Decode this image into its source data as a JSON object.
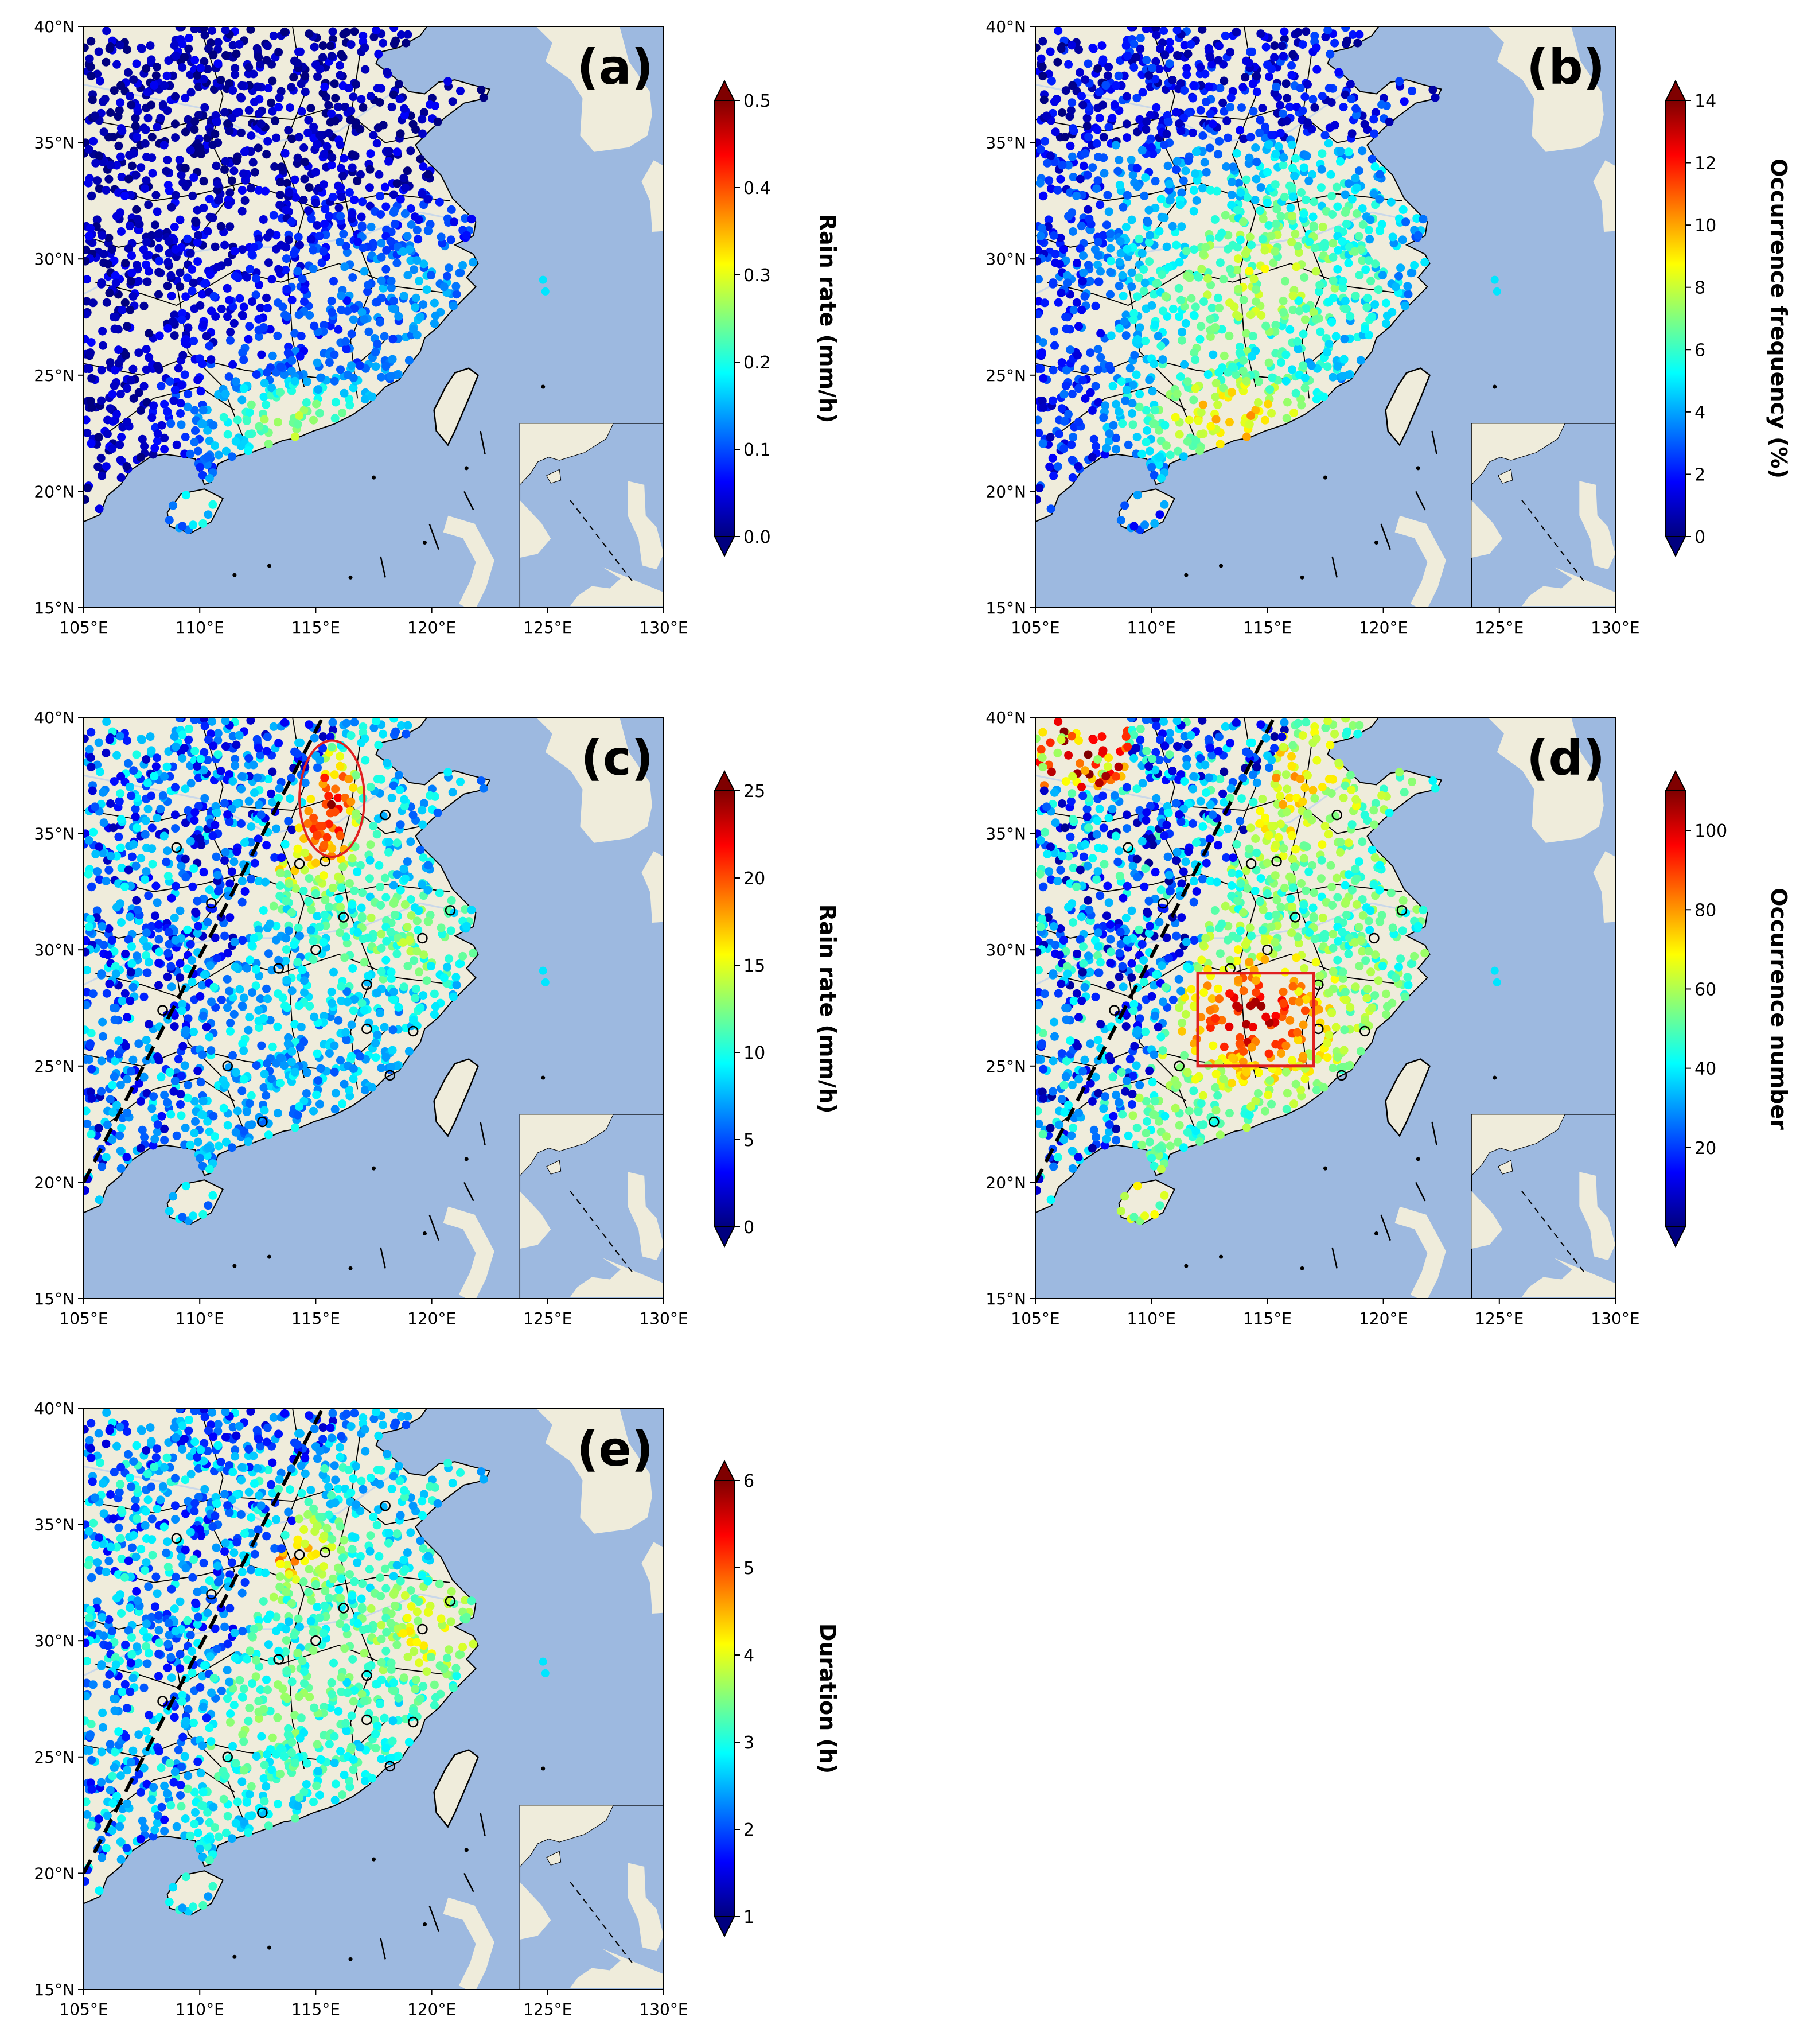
{
  "figure": {
    "colors": {
      "ocean": "#9db9e0",
      "land": "#efecdb",
      "border": "#000000",
      "river": "#c9d8ea",
      "frame": "#000000",
      "ellipse": "#e02020",
      "box": "#e02020",
      "colormap": [
        "#00007f",
        "#0000ff",
        "#0080ff",
        "#00ffff",
        "#80ff80",
        "#ffff00",
        "#ff8000",
        "#ff0000",
        "#7f0000"
      ]
    },
    "extent": {
      "lon": [
        105,
        130
      ],
      "lat": [
        15,
        40
      ]
    },
    "lon_ticks": [
      "105°E",
      "110°E",
      "115°E",
      "120°E",
      "125°E",
      "130°E"
    ],
    "lat_ticks": [
      "15°N",
      "20°N",
      "25°N",
      "30°N",
      "35°N",
      "40°N"
    ],
    "panels": [
      {
        "id": "a",
        "label": "(a)",
        "colorbar": {
          "title": "Rain rate (mm/h)",
          "min": 0.0,
          "max": 0.5,
          "ticks": [
            "0.0",
            "0.1",
            "0.2",
            "0.3",
            "0.4",
            "0.5"
          ]
        },
        "pattern": "rate_low",
        "dashed_line": false,
        "marker": null
      },
      {
        "id": "b",
        "label": "(b)",
        "colorbar": {
          "title": "Occurrence frequency (%)",
          "min": 0,
          "max": 14,
          "ticks": [
            "0",
            "2",
            "4",
            "6",
            "8",
            "10",
            "12",
            "14"
          ]
        },
        "pattern": "freq",
        "dashed_line": false,
        "marker": null
      },
      {
        "id": "c",
        "label": "(c)",
        "colorbar": {
          "title": "Rain rate (mm/h)",
          "min": 0,
          "max": 25,
          "ticks": [
            "0",
            "5",
            "10",
            "15",
            "20",
            "25"
          ]
        },
        "pattern": "rate_high",
        "dashed_line": true,
        "marker": {
          "type": "ellipse",
          "lon": 115.7,
          "lat": 36.5,
          "rlon": 1.4,
          "rlat": 2.5
        }
      },
      {
        "id": "d",
        "label": "(d)",
        "colorbar": {
          "title": "Occurrence number",
          "min": 0,
          "max": 110,
          "ticks": [
            "20",
            "40",
            "60",
            "80",
            "100"
          ]
        },
        "pattern": "number",
        "dashed_line": true,
        "marker": {
          "type": "box",
          "lon": [
            112,
            117
          ],
          "lat": [
            25,
            29
          ]
        }
      },
      {
        "id": "e",
        "label": "(e)",
        "colorbar": {
          "title": "Duration (h)",
          "min": 1,
          "max": 6,
          "ticks": [
            "1",
            "2",
            "3",
            "4",
            "5",
            "6"
          ]
        },
        "pattern": "duration",
        "dashed_line": true,
        "marker": null
      }
    ]
  }
}
